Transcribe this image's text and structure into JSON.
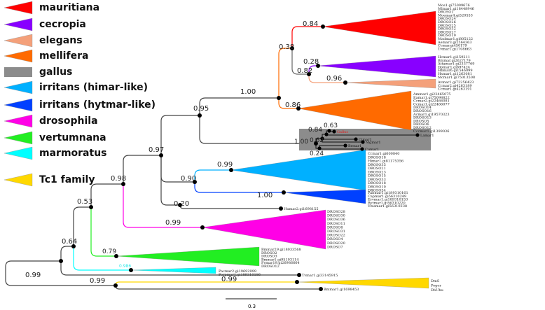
{
  "legend": [
    {
      "label": "mauritiana",
      "color": "#ff0000",
      "shape": "triangle"
    },
    {
      "label": "cecropia",
      "color": "#8800ff",
      "shape": "triangle"
    },
    {
      "label": "elegans",
      "color": "#f4a07a",
      "shape": "triangle"
    },
    {
      "label": "mellifera",
      "color": "#ff6a00",
      "shape": "triangle"
    },
    {
      "label": "gallus",
      "color": "#8c8c8c",
      "shape": "rect"
    },
    {
      "label": "irritans (himar-like)",
      "color": "#00b0ff",
      "shape": "triangle"
    },
    {
      "label": "irritans (hytmar-like)",
      "color": "#0040ff",
      "shape": "triangle"
    },
    {
      "label": "drosophila",
      "color": "#ff00e6",
      "shape": "triangle"
    },
    {
      "label": "vertumnana",
      "color": "#22ee22",
      "shape": "triangle"
    },
    {
      "label": "marmoratus",
      "color": "#00ffff",
      "shape": "triangle"
    },
    {
      "label": "Tc1 family",
      "color": "#ffd800",
      "shape": "triangle"
    }
  ],
  "supports": {
    "root_upper": "0.99",
    "tc1_lower": "0.99",
    "n064": "0.64",
    "cyan": "0.986",
    "n053": "0.53",
    "green": "0.79",
    "n098": "0.98",
    "pink": "0.99",
    "n097": "0.97",
    "n020": "0.20",
    "n090": "0.90",
    "lightblue": "0.99",
    "darkblue": "1.00",
    "n095": "0.95",
    "n100": "1.00",
    "n038": "0.38",
    "red": "0.84",
    "n082": "0.82",
    "purple": "0.28",
    "elegans": "0.96",
    "orange": "0.86",
    "yellow": "0.99",
    "gallus_root": "1.00",
    "g063": "0.63",
    "g084": "0.84",
    "g062": "0.62",
    "g024": "0.24"
  },
  "clades": {
    "mauritiana": [
      "Mos1.gi75009676",
      "Mlmar1.gi18448946",
      "DROSO1",
      "Moemar4.gi520553",
      "DROSO24",
      "DROSO26",
      "DROSO25",
      "DROSO32",
      "DROSO27",
      "DROSO19",
      "Madmar1.gi805122",
      "Aemar3.gi2564363",
      "Ccmar.gi450179",
      "Tvmar1.gi1708663"
    ],
    "cecropia": [
      "Hcmar1.gi159211",
      "Bmmar.gi2627179",
      "Attamar1.gi2337769",
      "Dpmar1.gi697424",
      "Hbmar6.gi1546099",
      "Hsmar1.gi1263081",
      "Mcmar1.gi75013508"
    ],
    "elegans": [
      "Avmar1.gi72256423",
      "Ccmar2.gi4263189",
      "Ccmar1.gi4263191"
    ],
    "mellifera": [
      "Ammar1.gi22465075",
      "Eamar1.gi75098822",
      "Ccmar2.gi22466081",
      "Ccmar1.gi22466077",
      "DROSO14",
      "DROSO16",
      "Acmar1.gi19570323",
      "DROSO13",
      "DROSO5",
      "DROSO6",
      "DROSO12",
      "Cccmar1.gi1399036"
    ],
    "himar": [
      "Ccmar1.gi600840",
      "DROSO18",
      "Himar1.gi81175356",
      "DROSO35",
      "DROSO21",
      "DROSO23",
      "DROSO15",
      "DROSO33",
      "DROSO18",
      "DROSO10",
      "DROSO34"
    ],
    "hytmar": [
      "Pabmar1.gi189310161",
      "Capmar1.gi56310249",
      "Ervmar1.gi189310153",
      "Bytmar1.gi56310220",
      "Vmsmar1.gi56310238"
    ],
    "drosophila": [
      "DROSO28",
      "DROSO30",
      "DROSO36",
      "DROSO11",
      "DROSO8",
      "DROSO31",
      "DROSO22",
      "DROSO4",
      "DROSO20",
      "DROSO7"
    ],
    "vertumnana": [
      "Bmmar29.gi18033568",
      "DROSO2",
      "DROSO3",
      "Bmmar1.gi95103114",
      "Fvmar19.gi26986664",
      "DROSO12"
    ],
    "marmoratus": [
      "Pacmar2.gi19692999",
      "Porpmar1.gi189310186"
    ],
    "tc1": [
      "DmS",
      "Pogor",
      "DbUhu"
    ]
  },
  "gallus_tips": [
    "Gallus",
    "Lamar1",
    "Cimar1",
    "Mgmar1",
    "Brmar1",
    "Cumar1"
  ],
  "single_tips": {
    "humar2": "Humar2.gi1698155",
    "tvmar": "Tvmar1.gi33145915",
    "bmmar": "Bmmar1.gi1698453"
  },
  "scale_bar": "0.3"
}
